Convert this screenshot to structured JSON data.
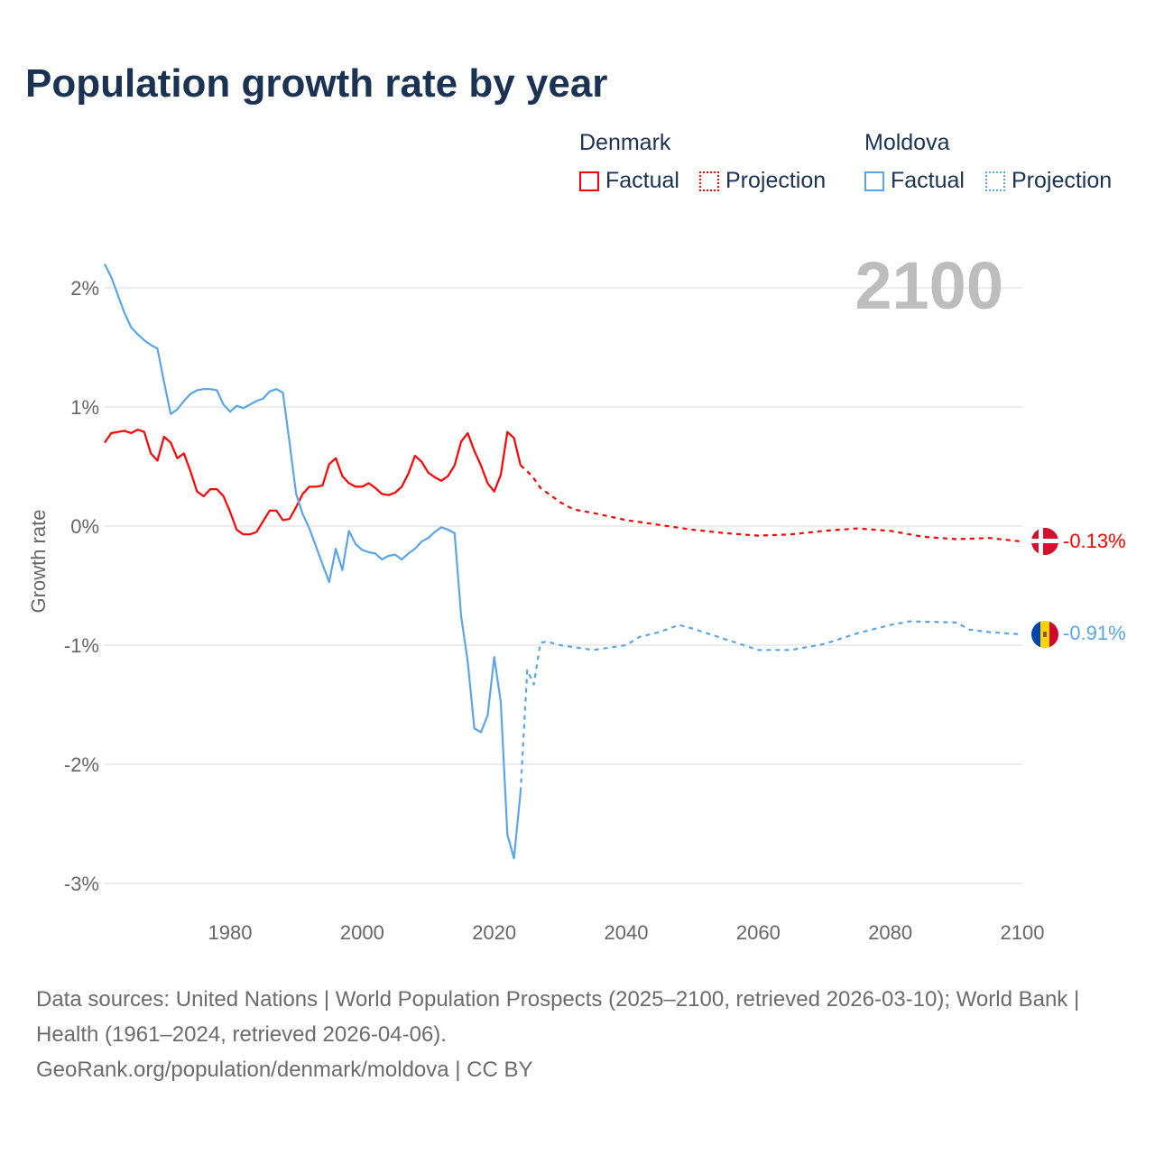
{
  "title": "Population growth rate by year",
  "legend": {
    "groups": [
      {
        "name": "Denmark",
        "color": "#ff0000",
        "items": [
          "Factual",
          "Projection"
        ]
      },
      {
        "name": "Moldova",
        "color": "#5aa5ea",
        "items": [
          "Factual",
          "Projection"
        ]
      }
    ]
  },
  "year_label": "2100",
  "end_labels": {
    "denmark": "-0.13%",
    "moldova": "-0.91%"
  },
  "source": {
    "line1": "Data sources: United Nations | World Population Prospects (2025–2100, retrieved 2026-03-10); World Bank | Health (1961–2024, retrieved 2026-04-06).",
    "line2": "GeoRank.org/population/denmark/moldova | CC BY"
  },
  "chart_data": {
    "type": "line",
    "title": "Population growth rate by year",
    "xlabel": "",
    "ylabel": "Growth rate",
    "xlim": [
      1961,
      2100
    ],
    "ylim": [
      -3.3,
      2.3
    ],
    "xticks": [
      1980,
      2000,
      2020,
      2040,
      2060,
      2080,
      2100
    ],
    "xtick_labels": [
      "1980",
      "2000",
      "2020",
      "2040",
      "2060",
      "2080",
      "2100"
    ],
    "yticks": [
      2,
      1,
      0,
      -1,
      -2,
      -3
    ],
    "ytick_labels": [
      "2%",
      "1%",
      "0%",
      "-1%",
      "-2%",
      "-3%"
    ],
    "grid": true,
    "legend_position": "top-right",
    "series": [
      {
        "name": "Denmark Factual",
        "color": "#ff0000",
        "dashed": false,
        "x": [
          1961,
          1962,
          1963,
          1964,
          1965,
          1966,
          1967,
          1968,
          1969,
          1970,
          1971,
          1972,
          1973,
          1974,
          1975,
          1976,
          1977,
          1978,
          1979,
          1980,
          1981,
          1982,
          1983,
          1984,
          1985,
          1986,
          1987,
          1988,
          1989,
          1990,
          1991,
          1992,
          1993,
          1994,
          1995,
          1996,
          1997,
          1998,
          1999,
          2000,
          2001,
          2002,
          2003,
          2004,
          2005,
          2006,
          2007,
          2008,
          2009,
          2010,
          2011,
          2012,
          2013,
          2014,
          2015,
          2016,
          2017,
          2018,
          2019,
          2020,
          2021,
          2022,
          2023,
          2024
        ],
        "y": [
          0.7,
          0.78,
          0.79,
          0.8,
          0.78,
          0.81,
          0.79,
          0.61,
          0.55,
          0.75,
          0.7,
          0.57,
          0.61,
          0.46,
          0.29,
          0.25,
          0.31,
          0.31,
          0.25,
          0.12,
          -0.03,
          -0.07,
          -0.07,
          -0.05,
          0.04,
          0.13,
          0.13,
          0.05,
          0.06,
          0.16,
          0.27,
          0.33,
          0.33,
          0.34,
          0.52,
          0.57,
          0.42,
          0.36,
          0.33,
          0.33,
          0.36,
          0.32,
          0.27,
          0.26,
          0.28,
          0.33,
          0.44,
          0.59,
          0.54,
          0.45,
          0.41,
          0.38,
          0.42,
          0.51,
          0.71,
          0.78,
          0.63,
          0.51,
          0.36,
          0.29,
          0.43,
          0.79,
          0.74,
          0.51
        ]
      },
      {
        "name": "Denmark Projection",
        "color": "#ff0000",
        "dashed": true,
        "x": [
          2024,
          2025,
          2026,
          2027,
          2028,
          2030,
          2032,
          2035,
          2040,
          2045,
          2050,
          2055,
          2060,
          2065,
          2070,
          2075,
          2080,
          2085,
          2090,
          2095,
          2100
        ],
        "y": [
          0.51,
          0.46,
          0.4,
          0.32,
          0.28,
          0.2,
          0.14,
          0.11,
          0.05,
          0.01,
          -0.03,
          -0.06,
          -0.08,
          -0.07,
          -0.04,
          -0.02,
          -0.04,
          -0.09,
          -0.11,
          -0.1,
          -0.13
        ]
      },
      {
        "name": "Moldova Factual",
        "color": "#5aa5ea",
        "dashed": false,
        "x": [
          1961,
          1962,
          1963,
          1964,
          1965,
          1966,
          1967,
          1968,
          1969,
          1970,
          1971,
          1972,
          1973,
          1974,
          1975,
          1976,
          1977,
          1978,
          1979,
          1980,
          1981,
          1982,
          1983,
          1984,
          1985,
          1986,
          1987,
          1988,
          1989,
          1990,
          1991,
          1992,
          1993,
          1994,
          1995,
          1996,
          1997,
          1998,
          1999,
          2000,
          2001,
          2002,
          2003,
          2004,
          2005,
          2006,
          2007,
          2008,
          2009,
          2010,
          2011,
          2012,
          2013,
          2014,
          2015,
          2016,
          2017,
          2018,
          2019,
          2020,
          2021,
          2022,
          2023,
          2024
        ],
        "y": [
          2.2,
          2.09,
          1.94,
          1.79,
          1.67,
          1.61,
          1.56,
          1.52,
          1.49,
          1.21,
          0.94,
          0.98,
          1.05,
          1.11,
          1.14,
          1.15,
          1.15,
          1.14,
          1.02,
          0.96,
          1.01,
          0.99,
          1.02,
          1.05,
          1.07,
          1.13,
          1.15,
          1.12,
          0.7,
          0.27,
          0.1,
          -0.02,
          -0.17,
          -0.32,
          -0.47,
          -0.19,
          -0.37,
          -0.04,
          -0.15,
          -0.2,
          -0.22,
          -0.23,
          -0.28,
          -0.25,
          -0.24,
          -0.28,
          -0.23,
          -0.19,
          -0.13,
          -0.1,
          -0.05,
          -0.01,
          -0.03,
          -0.06,
          -0.76,
          -1.14,
          -1.7,
          -1.73,
          -1.59,
          -1.1,
          -1.48,
          -2.59,
          -2.79,
          -2.23
        ]
      },
      {
        "name": "Moldova Projection",
        "color": "#5aa5ea",
        "dashed": true,
        "x": [
          2024,
          2025,
          2026,
          2027,
          2028,
          2030,
          2035,
          2040,
          2042,
          2045,
          2048,
          2050,
          2055,
          2060,
          2065,
          2070,
          2075,
          2080,
          2083,
          2090,
          2092,
          2095,
          2100
        ],
        "y": [
          -2.23,
          -1.21,
          -1.33,
          -0.98,
          -0.97,
          -1.0,
          -1.04,
          -1.0,
          -0.93,
          -0.89,
          -0.83,
          -0.86,
          -0.95,
          -1.04,
          -1.04,
          -0.99,
          -0.9,
          -0.83,
          -0.8,
          -0.81,
          -0.87,
          -0.89,
          -0.91
        ]
      }
    ]
  }
}
